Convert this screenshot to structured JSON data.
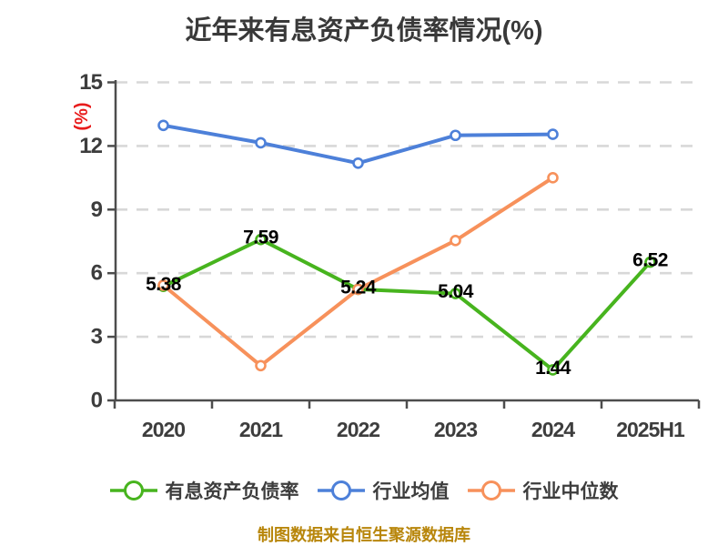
{
  "chart_data": {
    "type": "line",
    "title": "近年来有息资产负债率情况(%)",
    "ylabel": "(%)",
    "xlabel": "",
    "categories": [
      "2020",
      "2021",
      "2022",
      "2023",
      "2024",
      "2025H1"
    ],
    "yticks": [
      0,
      3,
      6,
      9,
      12,
      15
    ],
    "ylim": [
      0,
      15
    ],
    "grid": "horizontal-dashed",
    "legend_position": "bottom",
    "series": [
      {
        "name": "有息资产负债率",
        "color": "#47b41e",
        "values": [
          5.38,
          7.59,
          5.24,
          5.04,
          1.44,
          6.52
        ],
        "point_labels": [
          "5.38",
          "7.59",
          "5.24",
          "5.04",
          "1.44",
          "6.52"
        ]
      },
      {
        "name": "行业均值",
        "color": "#4d80d9",
        "values": [
          12.97,
          12.15,
          11.19,
          12.5,
          12.55,
          null
        ],
        "point_labels": null
      },
      {
        "name": "行业中位数",
        "color": "#f7915b",
        "values": [
          5.43,
          1.64,
          5.24,
          7.54,
          10.5,
          null
        ],
        "point_labels": null
      }
    ]
  },
  "footer": "制图数据来自恒生聚源数据库",
  "colors": {
    "background": "#ffffff",
    "title": "#393939",
    "axis": "#4d4d4d",
    "tick_label": "#3d3d3d",
    "grid": "#d8d8d8",
    "ylabel": "#e81c1c",
    "data_label": "#000000",
    "legend_text": "#3d3d3d",
    "footer": "#b8860b"
  }
}
